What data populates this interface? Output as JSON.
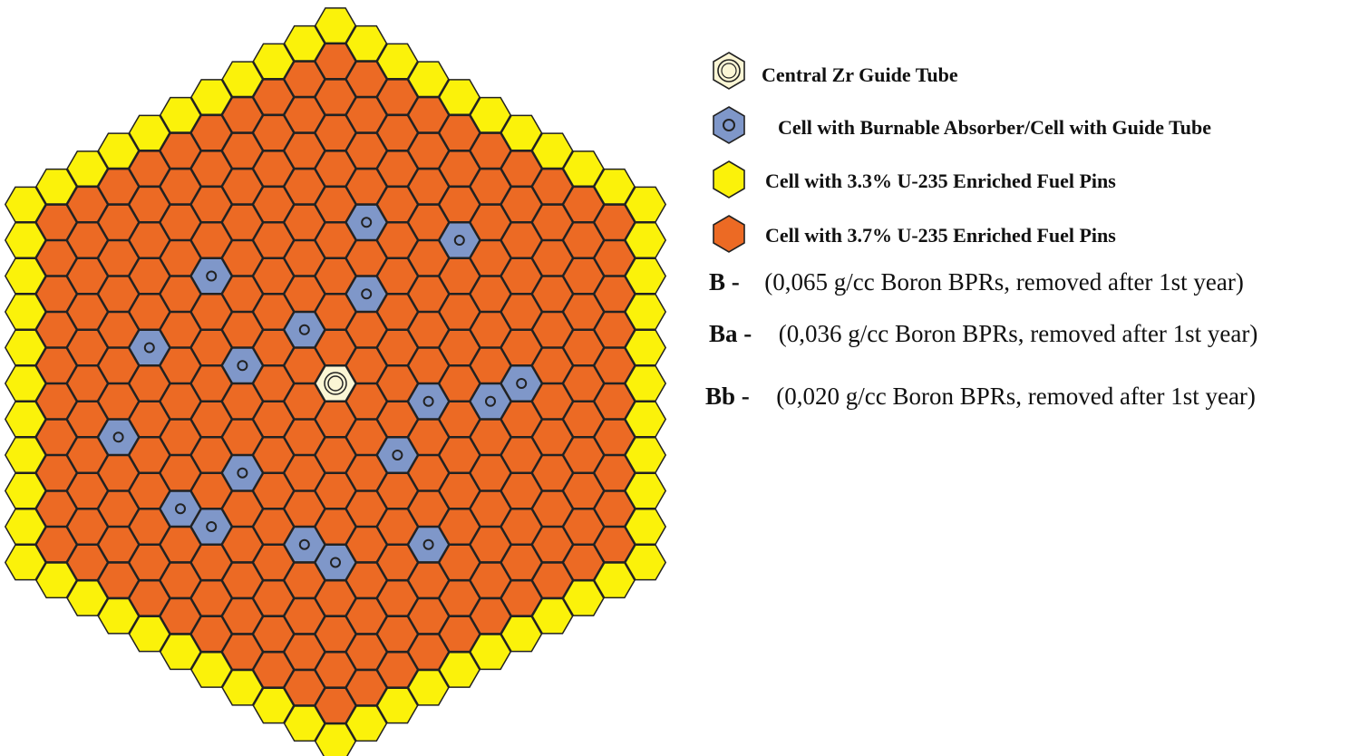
{
  "colors": {
    "fuel_33": "#fbf20a",
    "fuel_37": "#ec6a24",
    "absorber": "#7f97c9",
    "central": "#fbf6d5",
    "outline": "#222222"
  },
  "lattice": {
    "rings": 10,
    "orientation": "flat-top hexagonal assembly",
    "absorber_cells_axial": [
      [
        1,
        -5
      ],
      [
        -4,
        -1
      ],
      [
        4,
        -6
      ],
      [
        -6,
        2
      ],
      [
        -3,
        1
      ],
      [
        1,
        -3
      ],
      [
        6,
        -3
      ],
      [
        -1,
        -1
      ],
      [
        3,
        -1
      ],
      [
        -7,
        5
      ],
      [
        -3,
        4
      ],
      [
        -5,
        6
      ],
      [
        2,
        1
      ],
      [
        5,
        -2
      ],
      [
        -4,
        6
      ],
      [
        -1,
        5
      ],
      [
        3,
        3
      ],
      [
        0,
        5
      ]
    ],
    "outer_ring_fuel": "3.3% U-235",
    "inner_fuel": "3.7% U-235"
  },
  "legend": {
    "items": [
      {
        "label": "Central Zr Guide Tube",
        "icon": "central-guide-tube-icon"
      },
      {
        "label": "Cell with Burnable Absorber/Cell with Guide Tube",
        "icon": "absorber-cell-icon"
      },
      {
        "label": "Cell with 3.3% U-235 Enriched Fuel Pins",
        "icon": "fuel-33-icon"
      },
      {
        "label": "Cell with 3.7% U-235 Enriched Fuel Pins",
        "icon": "fuel-37-icon"
      }
    ],
    "codes": [
      {
        "code": "B -",
        "text": "(0,065 g/cc Boron BPRs, removed after 1st year)"
      },
      {
        "code": "Ba -",
        "text": "(0,036 g/cc Boron BPRs, removed after 1st year)"
      },
      {
        "code": "Bb -",
        "text": "(0,020 g/cc Boron BPRs, removed after 1st year)"
      }
    ]
  }
}
